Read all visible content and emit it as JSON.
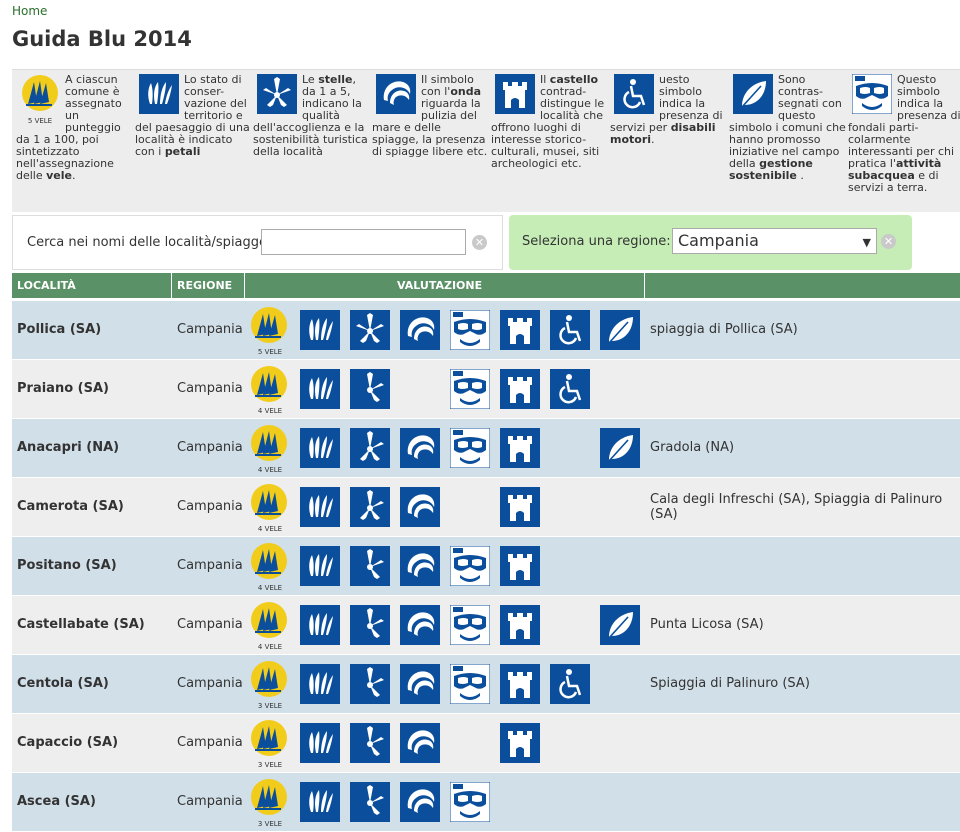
{
  "breadcrumb": "Home",
  "title": "Guida Blu 2014",
  "legend": [
    {
      "icon": "vele-icon",
      "html": "A ciascun comune è assegnato un punteggio da 1 a 100, poi sintetizzato nell'assegnazione delle <b>vele</b>.",
      "badge": "5 VELE"
    },
    {
      "icon": "petali-icon",
      "html": "Lo stato di conser-vazione del territorio e del paesaggio di una località è indicato con i <b>petali</b>"
    },
    {
      "icon": "stelle-icon",
      "html": "Le <b>stelle</b>, da 1 a 5, indicano la qualità dell'accoglienza e la sostenibilità turistica della località"
    },
    {
      "icon": "onda-icon",
      "html": "Il simbolo con l'<b>onda</b> riguarda la pulizia del mare e delle spiagge, la presenza di spiagge libere etc."
    },
    {
      "icon": "castello-icon",
      "html": "Il <b>castello</b> contrad-distingue le località che offrono luoghi di interesse storico-culturali, musei, siti archeologici etc."
    },
    {
      "icon": "disabili-icon",
      "html": "uesto simbolo indica la presenza di servizi per <b>disabili motori</b>."
    },
    {
      "icon": "foglia-icon",
      "html": "Sono contras-segnati con questo simbolo i comuni che hanno promosso iniziative nel campo della <b>gestione sostenibile</b> ."
    },
    {
      "icon": "maschera-icon",
      "html": "Questo simbolo indica la presenza di fondali parti-colarmente interessanti per chi pratica l'<b>attività subacquea</b> e di servizi a terra."
    }
  ],
  "search": {
    "label": "Cerca nei nomi delle località/spiagge",
    "value": "",
    "placeholder": ""
  },
  "region": {
    "label": "Seleziona una regione:",
    "selected": "Campania"
  },
  "table": {
    "headers": {
      "localita": "LOCALITÀ",
      "regione": "REGIONE",
      "valutazione": "VALUTAZIONE",
      "spiagge": ""
    },
    "rows": [
      {
        "localita": "Pollica (SA)",
        "regione": "Campania",
        "vele": "5 VELE",
        "petali": true,
        "stelle": 5,
        "onda": true,
        "maschera": true,
        "castello": true,
        "disabili": true,
        "foglia": true,
        "spiagge": "spiaggia di Pollica (SA)"
      },
      {
        "localita": "Praiano (SA)",
        "regione": "Campania",
        "vele": "4 VELE",
        "petali": true,
        "stelle": 3,
        "onda": false,
        "maschera": true,
        "castello": true,
        "disabili": true,
        "foglia": false,
        "spiagge": ""
      },
      {
        "localita": "Anacapri (NA)",
        "regione": "Campania",
        "vele": "4 VELE",
        "petali": true,
        "stelle": 4,
        "onda": true,
        "maschera": true,
        "castello": true,
        "disabili": false,
        "foglia": true,
        "spiagge": "Gradola (NA)"
      },
      {
        "localita": "Camerota (SA)",
        "regione": "Campania",
        "vele": "4 VELE",
        "petali": true,
        "stelle": 4,
        "onda": true,
        "maschera": false,
        "castello": true,
        "disabili": false,
        "foglia": false,
        "spiagge": "Cala degli Infreschi (SA), Spiaggia di Palinuro (SA)"
      },
      {
        "localita": "Positano (SA)",
        "regione": "Campania",
        "vele": "4 VELE",
        "petali": true,
        "stelle": 3,
        "onda": true,
        "maschera": true,
        "castello": true,
        "disabili": false,
        "foglia": false,
        "spiagge": ""
      },
      {
        "localita": "Castellabate (SA)",
        "regione": "Campania",
        "vele": "4 VELE",
        "petali": true,
        "stelle": 3,
        "onda": true,
        "maschera": true,
        "castello": true,
        "disabili": false,
        "foglia": true,
        "spiagge": "Punta Licosa (SA)"
      },
      {
        "localita": "Centola (SA)",
        "regione": "Campania",
        "vele": "3 VELE",
        "petali": true,
        "stelle": 3,
        "onda": true,
        "maschera": true,
        "castello": true,
        "disabili": true,
        "foglia": false,
        "spiagge": "Spiaggia di Palinuro (SA)"
      },
      {
        "localita": "Capaccio (SA)",
        "regione": "Campania",
        "vele": "3 VELE",
        "petali": true,
        "stelle": 3,
        "onda": true,
        "maschera": false,
        "castello": true,
        "disabili": false,
        "foglia": false,
        "spiagge": ""
      },
      {
        "localita": "Ascea (SA)",
        "regione": "Campania",
        "vele": "3 VELE",
        "petali": true,
        "stelle": 3,
        "onda": true,
        "maschera": true,
        "castello": false,
        "disabili": false,
        "foglia": false,
        "spiagge": ""
      }
    ]
  },
  "colors": {
    "icon_blue": "#0b4f9c",
    "vele_yellow": "#f2cc1a",
    "header_green": "#5a9166",
    "region_bg": "#c6edb6"
  }
}
